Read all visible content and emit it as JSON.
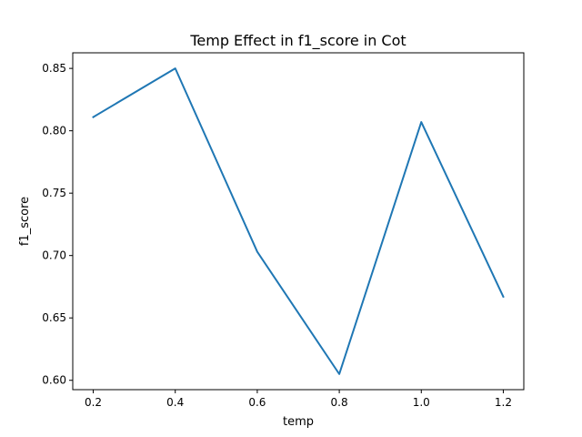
{
  "chart_data": {
    "type": "line",
    "title": "Temp Effect in f1_score in Cot",
    "xlabel": "temp",
    "ylabel": "f1_score",
    "x": [
      0.2,
      0.4,
      0.6,
      0.8,
      1.0,
      1.2
    ],
    "series": [
      {
        "values": [
          0.811,
          0.85,
          0.703,
          0.605,
          0.807,
          0.667
        ]
      }
    ],
    "xlim": [
      0.15,
      1.25
    ],
    "ylim": [
      0.5925,
      0.8625
    ],
    "xticks": [
      0.2,
      0.4,
      0.6,
      0.8,
      1.0,
      1.2
    ],
    "xtick_labels": [
      "0.2",
      "0.4",
      "0.6",
      "0.8",
      "1.0",
      "1.2"
    ],
    "yticks": [
      0.6,
      0.65,
      0.7,
      0.75,
      0.8,
      0.85
    ],
    "ytick_labels": [
      "0.60",
      "0.65",
      "0.70",
      "0.75",
      "0.80",
      "0.85"
    ],
    "grid": false,
    "legend": "none",
    "colors": {
      "line": "#1f77b4",
      "axes": "#000000",
      "background": "#ffffff"
    }
  }
}
